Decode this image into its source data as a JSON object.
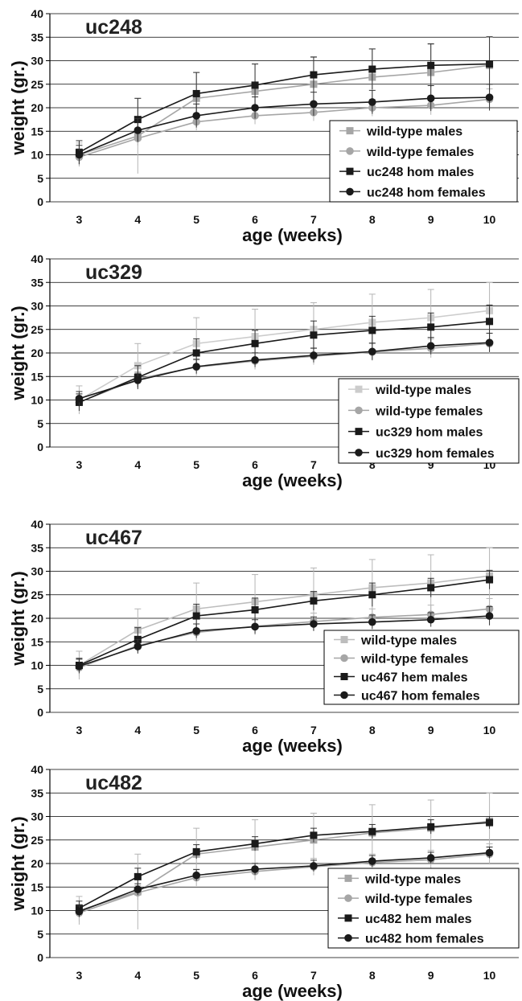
{
  "chart_data": [
    {
      "type": "line",
      "title": "uc248",
      "xlabel": "age (weeks)",
      "ylabel": "weight (gr.)",
      "x": [
        3,
        4,
        5,
        6,
        7,
        8,
        9,
        10
      ],
      "xlim": [
        2.5,
        10.5
      ],
      "ylim": [
        0,
        40
      ],
      "yticks": [
        0,
        5,
        10,
        15,
        20,
        25,
        30,
        35,
        40
      ],
      "grid": true,
      "legend_position": "lower-right",
      "series": [
        {
          "name": "wild-type males",
          "marker": "square",
          "color": "#a6a6a6",
          "values": [
            10,
            14,
            22,
            23.5,
            25,
            26.5,
            27.5,
            29
          ],
          "errors": [
            2.5,
            8,
            5.5,
            5.8,
            5.7,
            6,
            6,
            6
          ]
        },
        {
          "name": "wild-type females",
          "marker": "circle",
          "color": "#a6a6a6",
          "values": [
            9.5,
            13.5,
            17,
            18.3,
            19,
            20,
            20.5,
            21.8
          ],
          "errors": [
            1.8,
            1.5,
            1.8,
            1.8,
            1.8,
            1.8,
            2,
            2.2
          ]
        },
        {
          "name": "uc248 hom males",
          "marker": "square",
          "color": "#1a1a1a",
          "values": [
            10.5,
            17.5,
            23,
            24.8,
            27,
            28.2,
            29,
            29.3
          ],
          "errors": [
            2.5,
            4.5,
            4.5,
            4.5,
            3.8,
            4.3,
            4.6,
            5.8
          ]
        },
        {
          "name": "uc248 hom females",
          "marker": "circle",
          "color": "#1a1a1a",
          "values": [
            10,
            15.2,
            18.3,
            20,
            20.8,
            21.2,
            22,
            22.2
          ],
          "errors": [
            2,
            2.5,
            2.5,
            2.3,
            2.5,
            2.5,
            2.7,
            2.8
          ]
        }
      ]
    },
    {
      "type": "line",
      "title": "uc329",
      "xlabel": "age (weeks)",
      "ylabel": "weight (gr.)",
      "x": [
        3,
        4,
        5,
        6,
        7,
        8,
        9,
        10
      ],
      "xlim": [
        2.5,
        10.5
      ],
      "ylim": [
        0,
        40
      ],
      "yticks": [
        0,
        5,
        10,
        15,
        20,
        25,
        30,
        35,
        40
      ],
      "grid": true,
      "legend_position": "lower-right",
      "series": [
        {
          "name": "wild-type males",
          "marker": "square",
          "color": "#cccccc",
          "values": [
            10,
            17.3,
            22,
            23.5,
            25,
            26.5,
            27.5,
            29
          ],
          "errors": [
            3,
            4.7,
            5.5,
            5.8,
            5.7,
            6,
            6,
            6
          ]
        },
        {
          "name": "wild-type females",
          "marker": "circle",
          "color": "#a6a6a6",
          "values": [
            9.5,
            14.5,
            17,
            18.3,
            19.3,
            20.2,
            21,
            22
          ],
          "errors": [
            1.8,
            1.5,
            1.8,
            1.8,
            1.8,
            1.8,
            2,
            2.2
          ]
        },
        {
          "name": "uc329 hom males",
          "marker": "square",
          "color": "#1a1a1a",
          "values": [
            9.5,
            14.8,
            20,
            22,
            23.8,
            24.8,
            25.5,
            26.7
          ],
          "errors": [
            1.8,
            2.5,
            3,
            2.8,
            3,
            3,
            3,
            3.5
          ]
        },
        {
          "name": "uc329 hom females",
          "marker": "circle",
          "color": "#1a1a1a",
          "values": [
            10.3,
            14.2,
            17.1,
            18.5,
            19.5,
            20.3,
            21.5,
            22.2
          ],
          "errors": [
            1.5,
            1.5,
            1.5,
            1.5,
            1.5,
            1.8,
            1.8,
            2
          ]
        }
      ]
    },
    {
      "type": "line",
      "title": "uc467",
      "xlabel": "age (weeks)",
      "ylabel": "weight (gr.)",
      "x": [
        3,
        4,
        5,
        6,
        7,
        8,
        9,
        10
      ],
      "xlim": [
        2.5,
        10.5
      ],
      "ylim": [
        0,
        40
      ],
      "yticks": [
        0,
        5,
        10,
        15,
        20,
        25,
        30,
        35,
        40
      ],
      "grid": true,
      "legend_position": "lower-right",
      "series": [
        {
          "name": "wild-type males",
          "marker": "square",
          "color": "#bdbdbd",
          "values": [
            10,
            17.5,
            22,
            23.5,
            25,
            26.5,
            27.5,
            29
          ],
          "errors": [
            3,
            4.5,
            5.5,
            5.8,
            5.7,
            6,
            6,
            6
          ]
        },
        {
          "name": "wild-type females",
          "marker": "circle",
          "color": "#a6a6a6",
          "values": [
            9.5,
            14.2,
            17,
            18.3,
            19.3,
            20.2,
            20.8,
            22
          ],
          "errors": [
            1.8,
            1.5,
            1.8,
            1.8,
            1.8,
            1.8,
            2,
            2.2
          ]
        },
        {
          "name": "uc467 hem males",
          "marker": "square",
          "color": "#1a1a1a",
          "values": [
            10,
            15.5,
            20.5,
            21.8,
            23.7,
            25,
            26.5,
            28.2
          ],
          "errors": [
            1.5,
            2.5,
            2.5,
            2.5,
            2,
            2.5,
            2,
            2
          ]
        },
        {
          "name": "uc467 hom females",
          "marker": "circle",
          "color": "#1a1a1a",
          "values": [
            9.8,
            14,
            17.3,
            18.2,
            18.8,
            19.2,
            19.7,
            20.5
          ],
          "errors": [
            1.5,
            1.5,
            1.5,
            1.5,
            1.5,
            1.5,
            1.5,
            2
          ]
        }
      ]
    },
    {
      "type": "line",
      "title": "uc482",
      "xlabel": "age (weeks)",
      "ylabel": "weight (gr.)",
      "x": [
        3,
        4,
        5,
        6,
        7,
        8,
        9,
        10
      ],
      "xlim": [
        2.5,
        10.5
      ],
      "ylim": [
        0,
        40
      ],
      "yticks": [
        0,
        5,
        10,
        15,
        20,
        25,
        30,
        35,
        40
      ],
      "grid": true,
      "legend_position": "lower-right",
      "series": [
        {
          "name": "wild-type males",
          "marker": "square",
          "color": "#a6a6a6",
          "values": [
            10,
            14,
            22,
            23.5,
            25,
            26.5,
            27.5,
            29
          ],
          "errors": [
            3,
            8,
            5.5,
            5.8,
            5.7,
            6,
            6,
            6
          ]
        },
        {
          "name": "wild-type females",
          "marker": "circle",
          "color": "#a6a6a6",
          "values": [
            9.5,
            13.8,
            17,
            18.3,
            19.3,
            20.2,
            20.8,
            22
          ],
          "errors": [
            1.8,
            1.5,
            1.8,
            1.8,
            1.8,
            1.8,
            2,
            2.2
          ]
        },
        {
          "name": "uc482 hem males",
          "marker": "square",
          "color": "#1a1a1a",
          "values": [
            10.5,
            17.2,
            22.5,
            24.2,
            26,
            26.8,
            27.8,
            28.7
          ],
          "errors": [
            1.5,
            1.8,
            1.5,
            1.5,
            1.5,
            1.5,
            1.5,
            1.3
          ]
        },
        {
          "name": "uc482 hom females",
          "marker": "circle",
          "color": "#1a1a1a",
          "values": [
            9.8,
            14.5,
            17.5,
            18.8,
            19.5,
            20.5,
            21.2,
            22.3
          ],
          "errors": [
            1.2,
            1.2,
            1.2,
            1.2,
            1.2,
            1.2,
            1.2,
            1.2
          ]
        }
      ]
    }
  ]
}
